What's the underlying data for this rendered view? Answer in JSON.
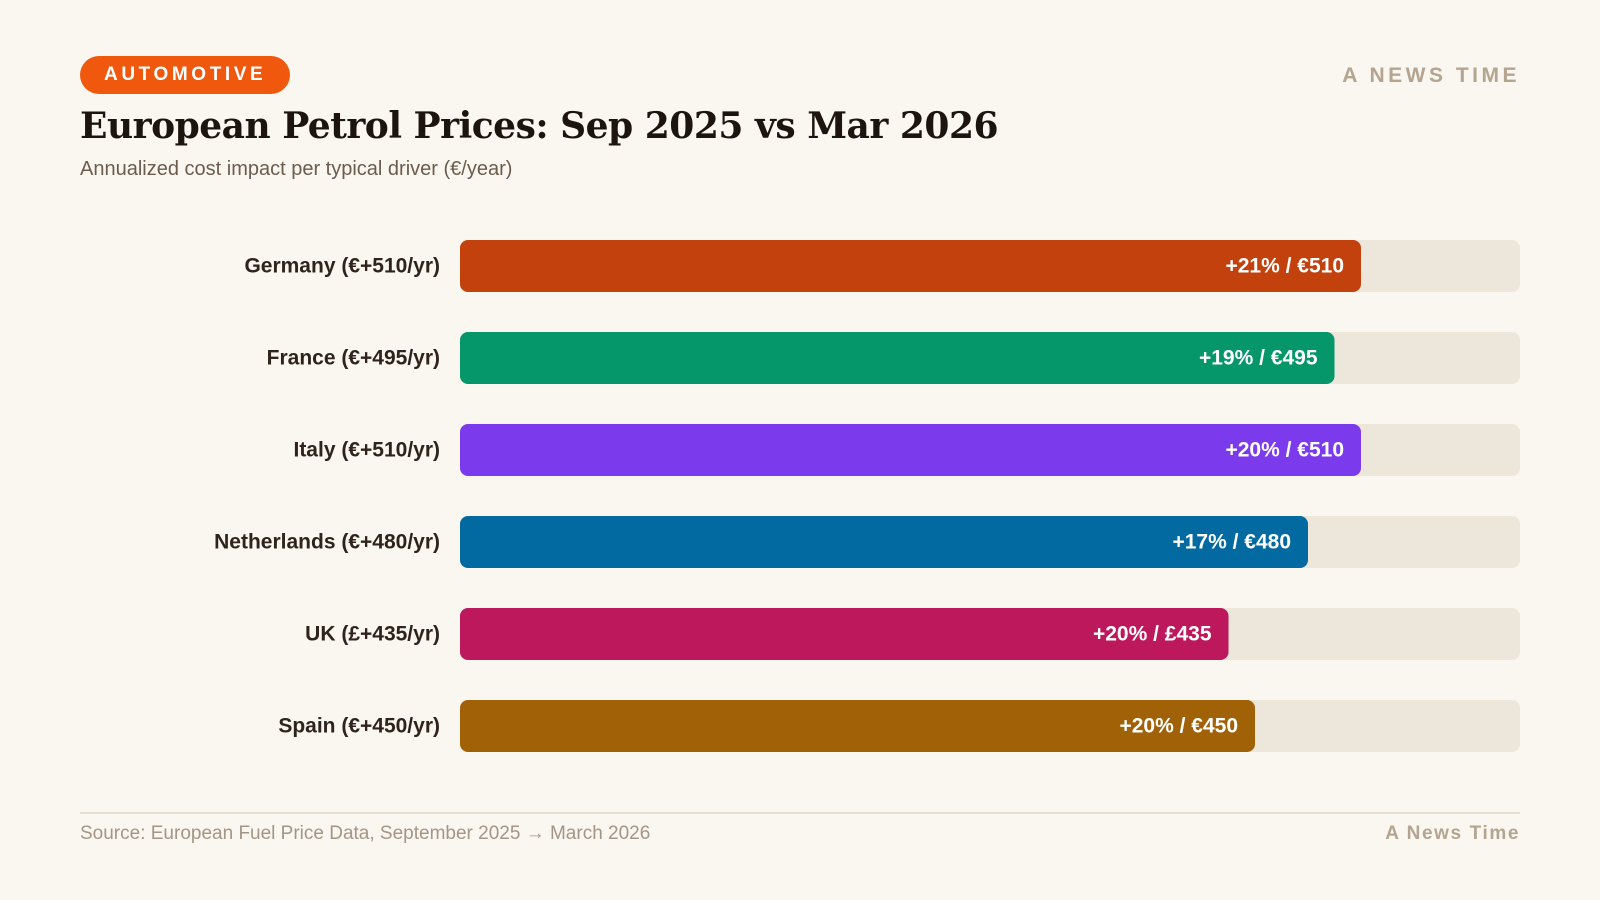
{
  "header": {
    "category_badge": "AUTOMOTIVE",
    "brand": "A NEWS TIME"
  },
  "footer": {
    "source": "Source: European Fuel Price Data, September 2025 → March 2026",
    "brand": "A News Time"
  },
  "colors": {
    "badge": "#f0580e",
    "track": "#ede6da",
    "bar_text": "#ffffff"
  },
  "chart_data": {
    "type": "bar",
    "orientation": "horizontal",
    "title": "European Petrol Prices: Sep 2025 vs Mar 2026",
    "subtitle": "Annualized cost impact per typical driver (€/year)",
    "xlim": [
      0,
      600
    ],
    "grid": false,
    "categories": [
      "Germany (€+510/yr)",
      "France (€+495/yr)",
      "Italy (€+510/yr)",
      "Netherlands (€+480/yr)",
      "UK (£+435/yr)",
      "Spain (€+450/yr)"
    ],
    "values": [
      510,
      495,
      510,
      480,
      435,
      450
    ],
    "data_labels": [
      "+21% / €510",
      "+19% / €495",
      "+20% / €510",
      "+17% / €480",
      "+20% / £435",
      "+20% / €450"
    ],
    "colors": [
      "#c2410c",
      "#059669",
      "#7c3aed",
      "#0369a1",
      "#be185d",
      "#a16207"
    ]
  }
}
